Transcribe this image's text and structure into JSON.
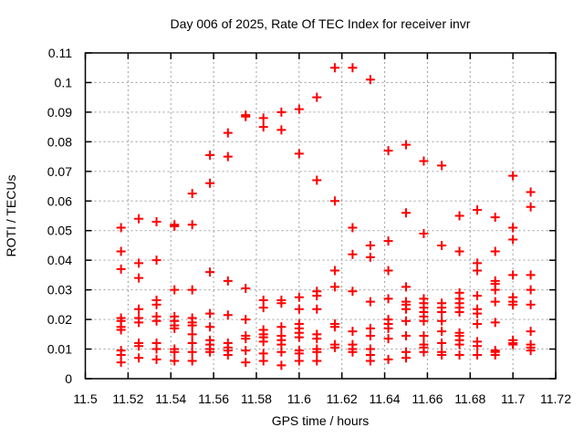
{
  "chart_data": {
    "type": "scatter",
    "title": "Day 006 of 2025, Rate Of TEC Index for receiver invr",
    "xlabel": "GPS time / hours",
    "ylabel": "ROTI / TECUs",
    "xlim": [
      11.5,
      11.72
    ],
    "ylim": [
      0,
      0.11
    ],
    "grid": "dashed",
    "legend": "none",
    "marker": {
      "shape": "plus",
      "color": "#ff0000",
      "size": 10,
      "stroke_width": 2
    },
    "grid_color": "#a0a0a0",
    "border_color": "#000000",
    "x_ticks": [
      {
        "value": 11.5,
        "label": "11.5"
      },
      {
        "value": 11.52,
        "label": "11.52"
      },
      {
        "value": 11.54,
        "label": "11.54"
      },
      {
        "value": 11.56,
        "label": "11.56"
      },
      {
        "value": 11.58,
        "label": "11.58"
      },
      {
        "value": 11.6,
        "label": "11.6"
      },
      {
        "value": 11.62,
        "label": "11.62"
      },
      {
        "value": 11.64,
        "label": "11.64"
      },
      {
        "value": 11.66,
        "label": "11.66"
      },
      {
        "value": 11.68,
        "label": "11.68"
      },
      {
        "value": 11.7,
        "label": "11.7"
      },
      {
        "value": 11.72,
        "label": "11.72"
      }
    ],
    "y_ticks": [
      {
        "value": 0,
        "label": "0"
      },
      {
        "value": 0.01,
        "label": "0.01"
      },
      {
        "value": 0.02,
        "label": "0.02"
      },
      {
        "value": 0.03,
        "label": "0.03"
      },
      {
        "value": 0.04,
        "label": "0.04"
      },
      {
        "value": 0.05,
        "label": "0.05"
      },
      {
        "value": 0.06,
        "label": "0.06"
      },
      {
        "value": 0.07,
        "label": "0.07"
      },
      {
        "value": 0.08,
        "label": "0.08"
      },
      {
        "value": 0.09,
        "label": "0.09"
      },
      {
        "value": 0.1,
        "label": "0.1"
      },
      {
        "value": 0.11,
        "label": "0.11"
      }
    ],
    "series": [
      {
        "name": "ROTI",
        "epochs": [
          {
            "t": 11.5167,
            "roti": [
              0.051,
              0.043,
              0.037,
              0.0205,
              0.0195,
              0.0175,
              0.0165,
              0.0095,
              0.008,
              0.0055
            ]
          },
          {
            "t": 11.525,
            "roti": [
              0.054,
              0.039,
              0.034,
              0.0235,
              0.0205,
              0.019,
              0.012,
              0.011,
              0.007
            ]
          },
          {
            "t": 11.5333,
            "roti": [
              0.053,
              0.04,
              0.0265,
              0.025,
              0.021,
              0.0195,
              0.012,
              0.01,
              0.0065
            ]
          },
          {
            "t": 11.5417,
            "roti": [
              0.052,
              0.0515,
              0.03,
              0.021,
              0.0195,
              0.018,
              0.017,
              0.01,
              0.009,
              0.006
            ]
          },
          {
            "t": 11.55,
            "roti": [
              0.0625,
              0.052,
              0.03,
              0.0205,
              0.019,
              0.018,
              0.015,
              0.012,
              0.009,
              0.006
            ]
          },
          {
            "t": 11.5583,
            "roti": [
              0.0755,
              0.066,
              0.036,
              0.022,
              0.0175,
              0.013,
              0.0115,
              0.01,
              0.009
            ]
          },
          {
            "t": 11.5667,
            "roti": [
              0.083,
              0.075,
              0.033,
              0.0215,
              0.012,
              0.0105,
              0.0095,
              0.008
            ]
          },
          {
            "t": 11.575,
            "roti": [
              0.089,
              0.0885,
              0.0305,
              0.02,
              0.0145,
              0.0135,
              0.0095,
              0.0055
            ]
          },
          {
            "t": 11.5833,
            "roti": [
              0.088,
              0.085,
              0.0265,
              0.024,
              0.0165,
              0.015,
              0.014,
              0.0125,
              0.0085,
              0.006
            ]
          },
          {
            "t": 11.5917,
            "roti": [
              0.09,
              0.084,
              0.0265,
              0.0255,
              0.0175,
              0.0145,
              0.013,
              0.0115,
              0.009,
              0.0045
            ]
          },
          {
            "t": 11.6,
            "roti": [
              0.091,
              0.076,
              0.0275,
              0.0235,
              0.0185,
              0.017,
              0.0155,
              0.014,
              0.0095,
              0.0085,
              0.006
            ]
          },
          {
            "t": 11.6083,
            "roti": [
              0.095,
              0.067,
              0.0295,
              0.028,
              0.0235,
              0.015,
              0.0135,
              0.01,
              0.009,
              0.006
            ]
          },
          {
            "t": 11.6167,
            "roti": [
              0.105,
              0.06,
              0.0365,
              0.031,
              0.0185,
              0.0175,
              0.0115,
              0.0105
            ]
          },
          {
            "t": 11.625,
            "roti": [
              0.105,
              0.051,
              0.042,
              0.0295,
              0.016,
              0.0115,
              0.01,
              0.009
            ]
          },
          {
            "t": 11.6333,
            "roti": [
              0.101,
              0.045,
              0.041,
              0.026,
              0.017,
              0.0145,
              0.01,
              0.008,
              0.006
            ]
          },
          {
            "t": 11.6417,
            "roti": [
              0.077,
              0.0465,
              0.0365,
              0.027,
              0.02,
              0.0185,
              0.017,
              0.0135,
              0.0065
            ]
          },
          {
            "t": 11.65,
            "roti": [
              0.079,
              0.056,
              0.031,
              0.026,
              0.025,
              0.0235,
              0.0195,
              0.0145,
              0.009,
              0.007
            ]
          },
          {
            "t": 11.6583,
            "roti": [
              0.0735,
              0.049,
              0.027,
              0.0255,
              0.024,
              0.0225,
              0.021,
              0.0195,
              0.0145,
              0.0115,
              0.0105,
              0.009
            ]
          },
          {
            "t": 11.6667,
            "roti": [
              0.072,
              0.045,
              0.0255,
              0.024,
              0.0225,
              0.0195,
              0.016,
              0.012,
              0.009,
              0.008
            ]
          },
          {
            "t": 11.675,
            "roti": [
              0.055,
              0.043,
              0.029,
              0.027,
              0.0255,
              0.024,
              0.0225,
              0.0155,
              0.0145,
              0.013,
              0.0115,
              0.008
            ]
          },
          {
            "t": 11.6833,
            "roti": [
              0.057,
              0.039,
              0.0365,
              0.028,
              0.0235,
              0.022,
              0.0185,
              0.0125,
              0.011,
              0.008
            ]
          },
          {
            "t": 11.6917,
            "roti": [
              0.0545,
              0.043,
              0.033,
              0.032,
              0.03,
              0.026,
              0.019,
              0.0095,
              0.009,
              0.008
            ]
          },
          {
            "t": 11.7,
            "roti": [
              0.0685,
              0.051,
              0.047,
              0.035,
              0.0275,
              0.026,
              0.025,
              0.013,
              0.012,
              0.0115
            ]
          },
          {
            "t": 11.7083,
            "roti": [
              0.063,
              0.058,
              0.035,
              0.03,
              0.025,
              0.016,
              0.0115,
              0.0105,
              0.0095
            ]
          }
        ]
      }
    ]
  }
}
